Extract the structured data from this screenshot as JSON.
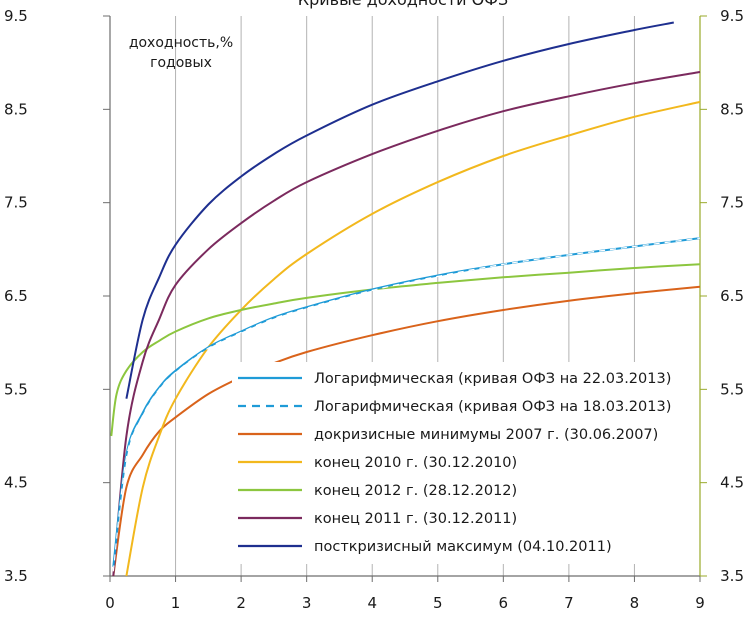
{
  "chart_data": {
    "type": "line",
    "title": "Кривые доходности ОФЗ",
    "annotation_lines": [
      "доходность,%",
      "годовых"
    ],
    "xlim": [
      0,
      9
    ],
    "ylim": [
      3.5,
      9.5
    ],
    "x_ticks": [
      "0",
      "1",
      "2",
      "3",
      "4",
      "5",
      "6",
      "7",
      "8",
      "9"
    ],
    "y_ticks_left": [
      "3.5",
      "4.5",
      "5.5",
      "6.5",
      "7.5",
      "8.5",
      "9.5"
    ],
    "y_ticks_right": [
      "3.5",
      "4.5",
      "5.5",
      "6.5",
      "7.5",
      "8.5",
      "9.5"
    ],
    "grid": "vertical",
    "legend_position": "bottom-right",
    "series": [
      {
        "name": "Логарифмическая (кривая ОФЗ на 22.03.2013)",
        "color": "#1f9bd7",
        "dash": "solid",
        "x": [
          0.05,
          0.25,
          0.5,
          0.75,
          1,
          1.5,
          2,
          2.5,
          3,
          4,
          5,
          6,
          7,
          8,
          9
        ],
        "y": [
          3.6,
          4.8,
          5.25,
          5.52,
          5.7,
          5.95,
          6.12,
          6.27,
          6.38,
          6.57,
          6.72,
          6.84,
          6.94,
          7.03,
          7.12
        ]
      },
      {
        "name": "Логарифмическая (кривая ОФЗ на 18.03.2013)",
        "color": "#1f9bd7",
        "dash": "dashed",
        "x": [
          0.05,
          0.25,
          0.5,
          0.75,
          1,
          1.5,
          2,
          2.5,
          3,
          4,
          5,
          6,
          7,
          8,
          9
        ],
        "y": [
          3.55,
          4.77,
          5.22,
          5.5,
          5.68,
          5.94,
          6.11,
          6.26,
          6.37,
          6.56,
          6.71,
          6.84,
          6.94,
          7.03,
          7.12
        ]
      },
      {
        "name": "докризисные минимумы 2007 г. (30.06.2007)",
        "color": "#d9631b",
        "dash": "solid",
        "x": [
          0.05,
          0.25,
          0.5,
          0.75,
          1,
          1.5,
          2,
          2.5,
          3,
          4,
          5,
          6,
          7,
          8,
          9
        ],
        "y": [
          3.5,
          4.45,
          4.8,
          5.05,
          5.2,
          5.45,
          5.63,
          5.78,
          5.9,
          6.08,
          6.23,
          6.35,
          6.45,
          6.53,
          6.6
        ]
      },
      {
        "name": "конец 2010 г. (30.12.2010)",
        "color": "#f2b81d",
        "dash": "solid",
        "x": [
          0.25,
          0.5,
          0.75,
          1,
          1.5,
          2,
          2.5,
          3,
          4,
          5,
          6,
          7,
          8,
          9
        ],
        "y": [
          3.5,
          4.45,
          5.0,
          5.4,
          5.95,
          6.35,
          6.68,
          6.95,
          7.38,
          7.72,
          8.0,
          8.22,
          8.42,
          8.58
        ]
      },
      {
        "name": "конец 2012 г. (28.12.2012)",
        "color": "#8cc63f",
        "dash": "solid",
        "x": [
          0.02,
          0.1,
          0.25,
          0.5,
          0.75,
          1,
          1.5,
          2,
          2.5,
          3,
          4,
          5,
          6,
          7,
          8,
          9
        ],
        "y": [
          5.0,
          5.45,
          5.7,
          5.9,
          6.02,
          6.12,
          6.26,
          6.35,
          6.42,
          6.48,
          6.57,
          6.64,
          6.7,
          6.75,
          6.8,
          6.84
        ]
      },
      {
        "name": "конец 2011 г. (30.12.2011)",
        "color": "#7b2a5e",
        "dash": "solid",
        "x": [
          0.05,
          0.25,
          0.5,
          0.75,
          1,
          1.5,
          2,
          2.5,
          3,
          4,
          5,
          6,
          7,
          8,
          9
        ],
        "y": [
          3.5,
          5.0,
          5.8,
          6.25,
          6.62,
          7.0,
          7.28,
          7.52,
          7.72,
          8.02,
          8.27,
          8.48,
          8.64,
          8.78,
          8.9
        ]
      },
      {
        "name": "посткризисный максимум (04.10.2011)",
        "color": "#1e2f8f",
        "dash": "solid",
        "x": [
          0.25,
          0.5,
          0.75,
          1,
          1.5,
          2,
          2.5,
          3,
          4,
          5,
          6,
          7,
          8,
          8.6
        ],
        "y": [
          5.4,
          6.25,
          6.7,
          7.05,
          7.48,
          7.78,
          8.02,
          8.22,
          8.55,
          8.8,
          9.02,
          9.2,
          9.35,
          9.43
        ]
      }
    ]
  }
}
